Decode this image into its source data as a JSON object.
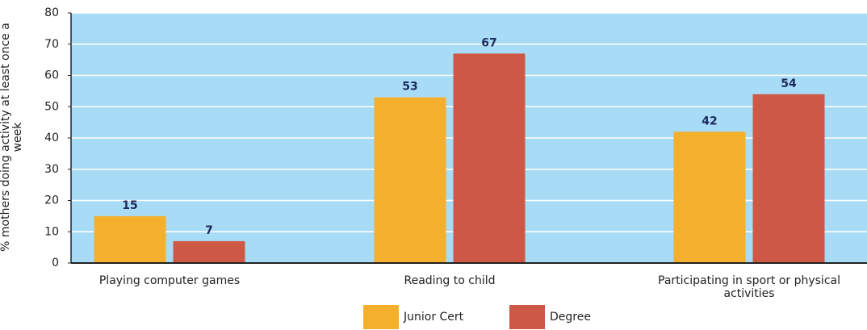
{
  "chart_data": {
    "type": "bar",
    "categories": [
      "Playing computer games",
      "Reading to child",
      "Participating in sport or physical activities"
    ],
    "series": [
      {
        "name": "Junior Cert",
        "color": "#f4af2d",
        "values": [
          15,
          53,
          42
        ]
      },
      {
        "name": "Degree",
        "color": "#cd5845",
        "values": [
          7,
          67,
          54
        ]
      }
    ],
    "y_label": "% mothers doing activity at least once a week",
    "ylim": [
      0,
      80
    ],
    "yticks": [
      0,
      10,
      20,
      30,
      40,
      50,
      60,
      70,
      80
    ],
    "grid": true,
    "background": "#a8dcf6"
  }
}
